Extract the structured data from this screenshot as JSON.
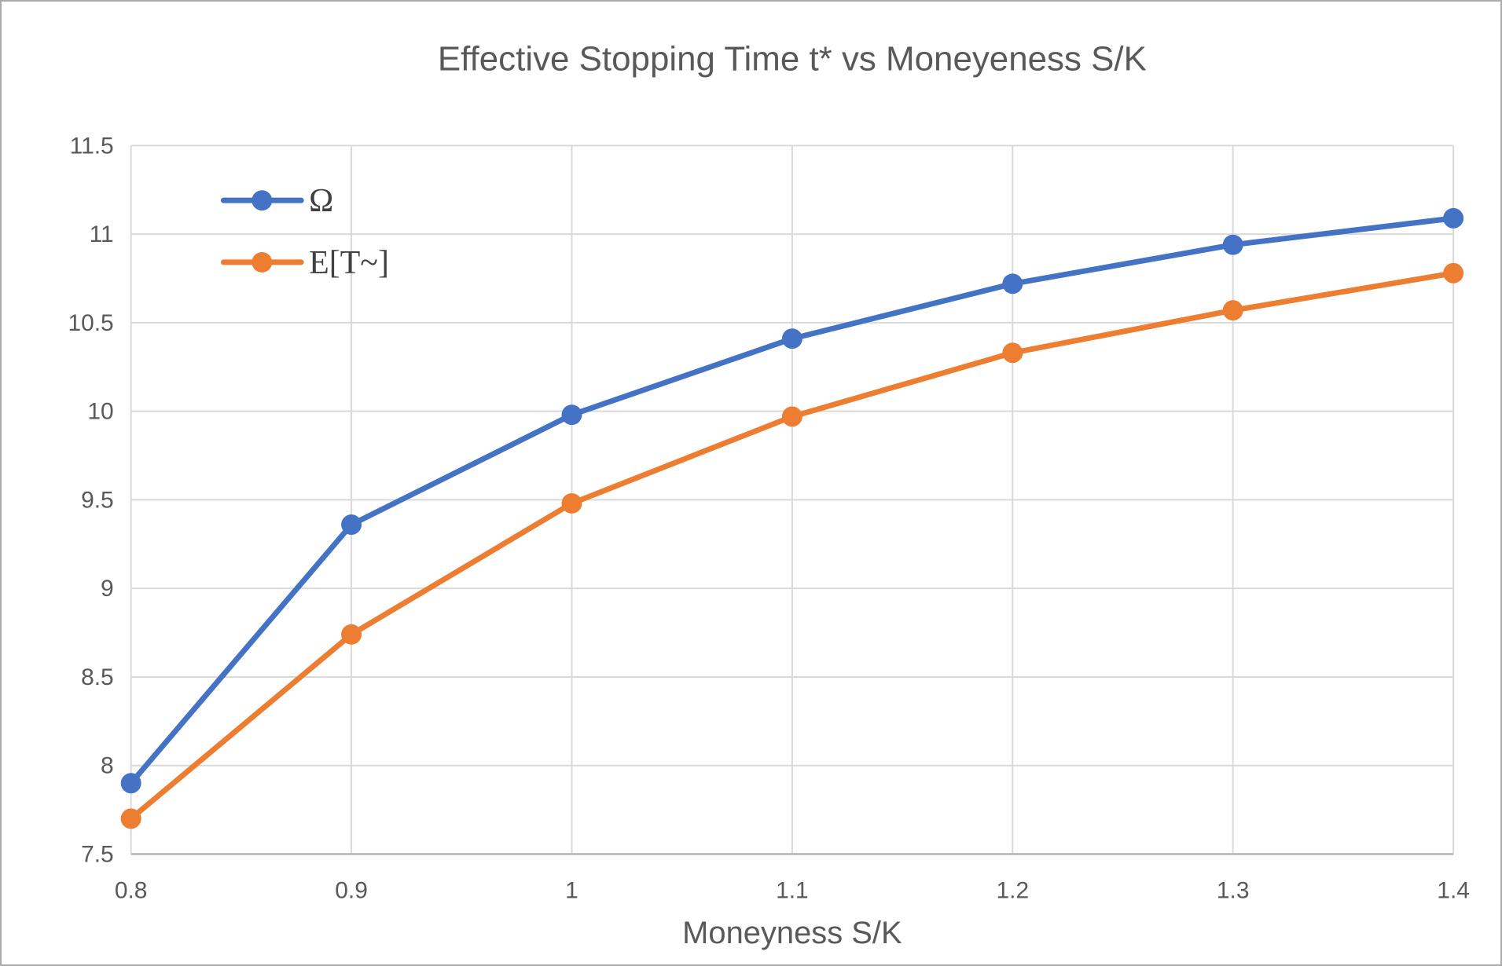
{
  "window": {
    "background_color": "#ffffff",
    "border_color": "#ababab"
  },
  "chart_data": {
    "type": "line",
    "title": "Effective Stopping Time t* vs Moneyeness S/K",
    "xlabel": "Moneyness S/K",
    "ylabel": "",
    "xlim": [
      0.8,
      1.4
    ],
    "ylim": [
      7.5,
      11.5
    ],
    "x_ticks": [
      0.8,
      0.9,
      1.0,
      1.1,
      1.2,
      1.3,
      1.4
    ],
    "x_tick_labels": [
      "0.8",
      "0.9",
      "1",
      "1.1",
      "1.2",
      "1.3",
      "1.4"
    ],
    "y_ticks": [
      7.5,
      8,
      8.5,
      9,
      9.5,
      10,
      10.5,
      11,
      11.5
    ],
    "y_tick_labels": [
      "7.5",
      "8",
      "8.5",
      "9",
      "9.5",
      "10",
      "10.5",
      "11",
      "11.5"
    ],
    "grid": true,
    "legend_position": "inside-top-left",
    "x": [
      0.8,
      0.9,
      1.0,
      1.1,
      1.2,
      1.3,
      1.4
    ],
    "series": [
      {
        "name": "Ω",
        "color": "#4472C4",
        "values": [
          7.9,
          9.36,
          9.98,
          10.41,
          10.72,
          10.94,
          11.09
        ]
      },
      {
        "name": "E[T~]",
        "color": "#ED7D31",
        "values": [
          7.7,
          8.74,
          9.48,
          9.97,
          10.33,
          10.57,
          10.78
        ]
      }
    ],
    "style": {
      "text_color": "#595959",
      "legend_text_color": "#404040",
      "gridline_color": "#d9d9d9",
      "axis_line_color": "#bfbfbf",
      "line_width": 7,
      "marker_radius": 13
    }
  }
}
